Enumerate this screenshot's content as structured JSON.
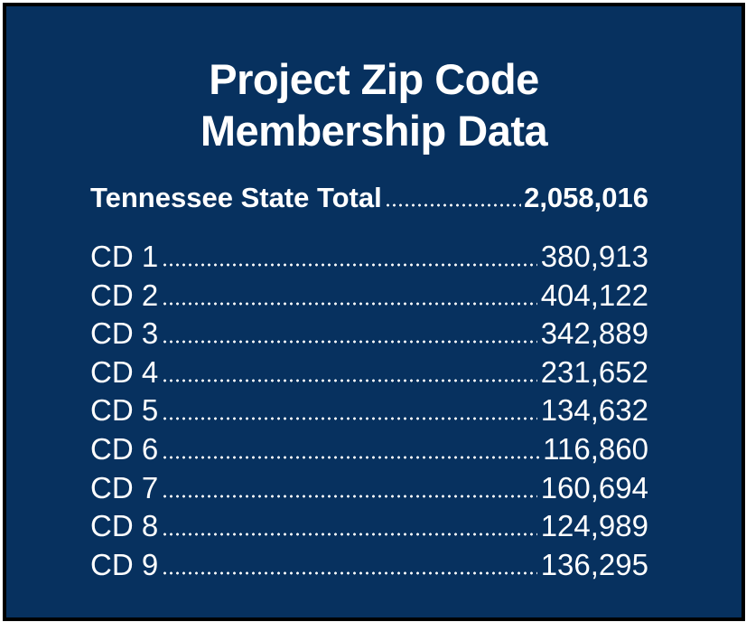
{
  "title": [
    "Project Zip Code",
    "Membership Data"
  ],
  "total": {
    "label": "Tennessee State Total",
    "value": "2,058,016"
  },
  "rows": [
    {
      "label": "CD 1",
      "value": "380,913"
    },
    {
      "label": "CD 2",
      "value": "404,122"
    },
    {
      "label": "CD 3",
      "value": "342,889"
    },
    {
      "label": "CD 4",
      "value": "231,652"
    },
    {
      "label": "CD 5",
      "value": "134,632"
    },
    {
      "label": "CD 6",
      "value": "116,860"
    },
    {
      "label": "CD 7",
      "value": "160,694"
    },
    {
      "label": "CD 8",
      "value": "124,989"
    },
    {
      "label": "CD 9",
      "value": "136,295"
    }
  ]
}
